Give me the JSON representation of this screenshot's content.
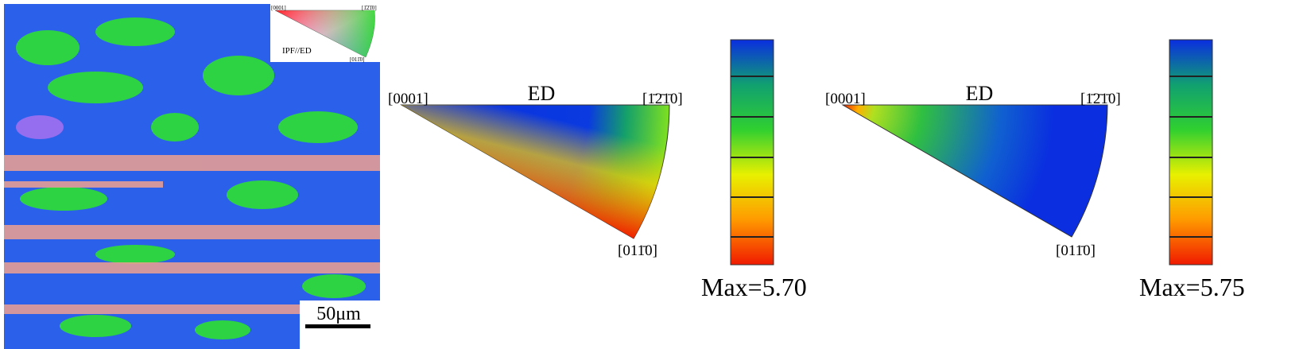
{
  "ebsd_map": {
    "inset": {
      "top_left": "[0001]",
      "top_right": "[1̄2̄1̄0]",
      "bottom": "[011̄0]",
      "caption": "IPF//ED"
    },
    "scale_bar": "50μm"
  },
  "pole_figures": [
    {
      "axis_label": "ED",
      "top_left": "[0001]",
      "top_right": "[1̄2̄1̄0]",
      "bottom": "[011̄0]",
      "max": "Max=5.70"
    },
    {
      "axis_label": "ED",
      "top_left": "[0001]",
      "top_right": "[1̄2̄1̄0]",
      "bottom": "[011̄0]",
      "max": "Max=5.75"
    }
  ]
}
